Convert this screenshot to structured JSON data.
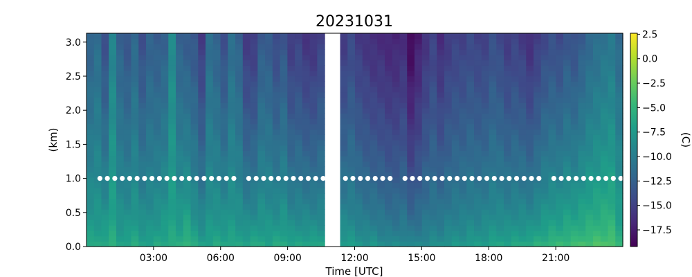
{
  "chart_data": {
    "type": "heatmap",
    "title": "20231031",
    "xlabel": "Time [UTC]",
    "ylabel": "(km)",
    "colorbar_label": "(C)",
    "colormap": "viridis",
    "x_ticks": [
      {
        "hour": 3,
        "label": "03:00"
      },
      {
        "hour": 6,
        "label": "06:00"
      },
      {
        "hour": 9,
        "label": "09:00"
      },
      {
        "hour": 12,
        "label": "12:00"
      },
      {
        "hour": 15,
        "label": "15:00"
      },
      {
        "hour": 18,
        "label": "18:00"
      },
      {
        "hour": 21,
        "label": "21:00"
      }
    ],
    "y_ticks": [
      {
        "value": 0.0,
        "label": "0.0"
      },
      {
        "value": 0.5,
        "label": "0.5"
      },
      {
        "value": 1.0,
        "label": "1.0"
      },
      {
        "value": 1.5,
        "label": "1.5"
      },
      {
        "value": 2.0,
        "label": "2.0"
      },
      {
        "value": 2.5,
        "label": "2.5"
      },
      {
        "value": 3.0,
        "label": "3.0"
      }
    ],
    "colorbar_ticks": [
      {
        "value": 2.5,
        "label": "2.5"
      },
      {
        "value": 0.0,
        "label": "0.0"
      },
      {
        "value": -2.5,
        "label": "−2.5"
      },
      {
        "value": -5.0,
        "label": "−5.0"
      },
      {
        "value": -7.5,
        "label": "−7.5"
      },
      {
        "value": -10.0,
        "label": "−10.0"
      },
      {
        "value": -12.5,
        "label": "−12.5"
      },
      {
        "value": -15.0,
        "label": "−15.0"
      },
      {
        "value": -17.5,
        "label": "−17.5"
      }
    ],
    "xlim_hours": [
      0,
      24
    ],
    "ylim_km": [
      0,
      3.13
    ],
    "clim": [
      -19.2,
      2.6
    ],
    "data_gap_hours": [
      10.75,
      11.35
    ],
    "marker_height_km": 1.0,
    "marker_color": "#ffffff",
    "column_period_hours": 0.333,
    "surface_temperature_c": [
      -5.5,
      -5.8,
      -5.0,
      -5.2,
      -6.0,
      -5.6,
      -5.4,
      -5.8,
      -6.3,
      -5.5,
      -5.3,
      -5.7,
      -5.1,
      -3.8,
      -5.4,
      -5.9,
      -6.2,
      -5.6,
      -5.4,
      -5.8,
      -6.0,
      -5.5,
      -5.2,
      -5.6,
      -5.9,
      -5.3,
      -5.1,
      -5.6,
      -5.8,
      -5.4,
      -5.5,
      -5.9,
      -6.1,
      -6.5,
      -6.9,
      -7.2,
      -7.0,
      -7.6,
      -7.9,
      -8.0,
      -7.8,
      -8.0,
      -8.2,
      -8.0,
      -7.9,
      -7.5,
      -7.2,
      -7.0,
      -6.9,
      -6.6,
      -6.5,
      -6.2,
      -6.0,
      -5.8,
      -5.6,
      -5.5,
      -5.2,
      -4.9,
      -4.6,
      -4.3,
      -4.0,
      -3.7,
      -3.5,
      -3.3,
      -3.1,
      -3.0,
      -2.9,
      -2.8,
      -2.8,
      -4.5
    ],
    "upper_temperature_c": [
      -12.5,
      -11.5,
      -14.0,
      -9.5,
      -12.5,
      -13.5,
      -12.0,
      -14.0,
      -12.5,
      -13.0,
      -12.5,
      -9.0,
      -12.5,
      -13.0,
      -13.5,
      -15.5,
      -11.5,
      -12.5,
      -14.0,
      -11.5,
      -12.5,
      -15.5,
      -15.5,
      -13.0,
      -13.0,
      -14.5,
      -13.5,
      -15.5,
      -15.0,
      -16.0,
      -16.0,
      -15.0,
      -15.5,
      -14.5,
      -15.5,
      -16.0,
      -16.5,
      -16.5,
      -17.0,
      -17.0,
      -16.5,
      -19.0,
      -17.5,
      -16.0,
      -15.0,
      -16.5,
      -15.5,
      -15.0,
      -15.0,
      -14.5,
      -15.0,
      -15.0,
      -14.0,
      -14.5,
      -15.5,
      -15.0,
      -15.5,
      -16.5,
      -15.5,
      -14.5,
      -14.0,
      -14.5,
      -13.5,
      -14.0,
      -13.0,
      -12.0,
      -11.5,
      -11.0,
      -10.5,
      -12.0
    ]
  }
}
